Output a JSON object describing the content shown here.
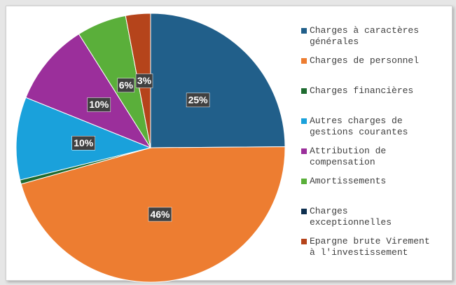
{
  "chart_data": {
    "type": "pie",
    "categories": [
      "Charges à caractères générales",
      "Charges de personnel",
      "Charges financières",
      "Autres charges de gestions courantes",
      "Attribution de compensation",
      "Amortissements",
      "Charges exceptionnelles",
      "Epargne brute Virement à l'investissement"
    ],
    "values": [
      25,
      46,
      0.5,
      10,
      10,
      6,
      0,
      3
    ],
    "value_labels": [
      "25%",
      "46%",
      null,
      "10%",
      "10%",
      "6%",
      null,
      "3%"
    ],
    "colors": [
      "#215f8a",
      "#ed7d31",
      "#1e6b30",
      "#1aa1db",
      "#9b2f9b",
      "#5aaf3a",
      "#0e2f4f",
      "#b5441b"
    ],
    "legend": "right"
  }
}
